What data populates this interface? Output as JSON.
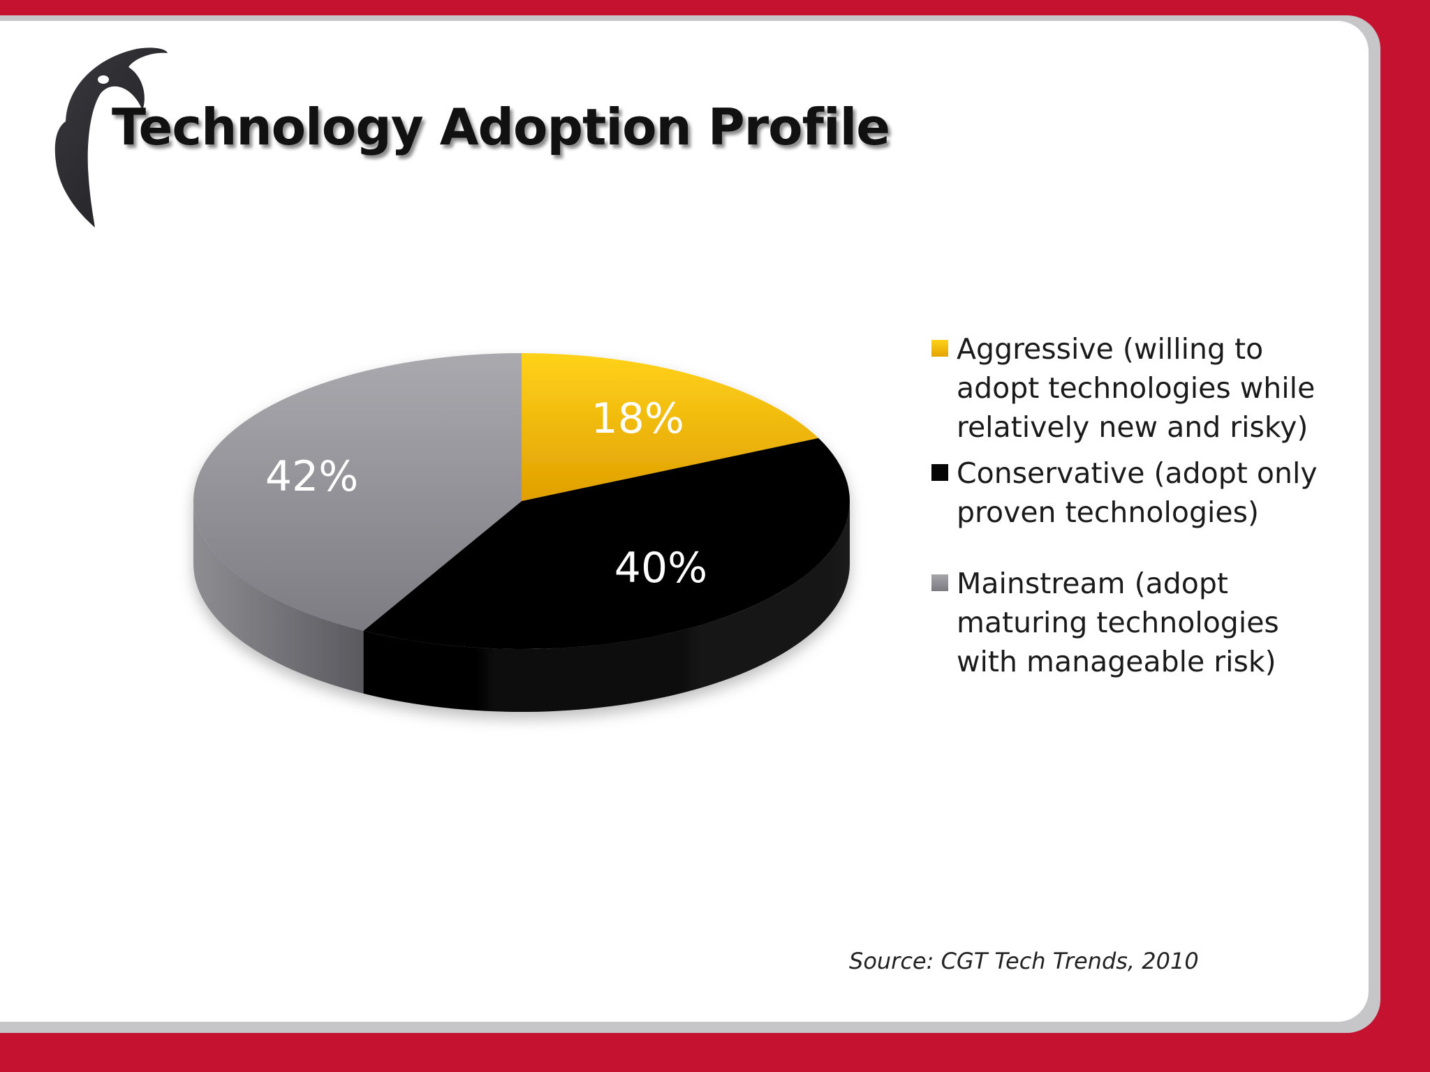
{
  "slide": {
    "title": "Technology Adoption Profile",
    "source": "Source:  CGT Tech Trends, 2010",
    "logo_icon": "penguin-icon"
  },
  "colors": {
    "background": "#c41230",
    "card": "#ffffff",
    "aggressive": "#f2b705",
    "conservative": "#050505",
    "mainstream": "#8e8e94"
  },
  "chart_data": {
    "type": "pie",
    "title": "",
    "style": "3d",
    "slices": [
      {
        "key": "aggressive",
        "label": "Aggressive (willing to adopt technologies while relatively new and risky)",
        "value": 18,
        "value_label": "18%"
      },
      {
        "key": "conservative",
        "label": "Conservative (adopt only proven technologies)",
        "value": 40,
        "value_label": "40%"
      },
      {
        "key": "mainstream",
        "label": "Mainstream (adopt maturing technologies with manageable risk)",
        "value": 42,
        "value_label": "42%"
      }
    ],
    "legend_position": "right"
  }
}
